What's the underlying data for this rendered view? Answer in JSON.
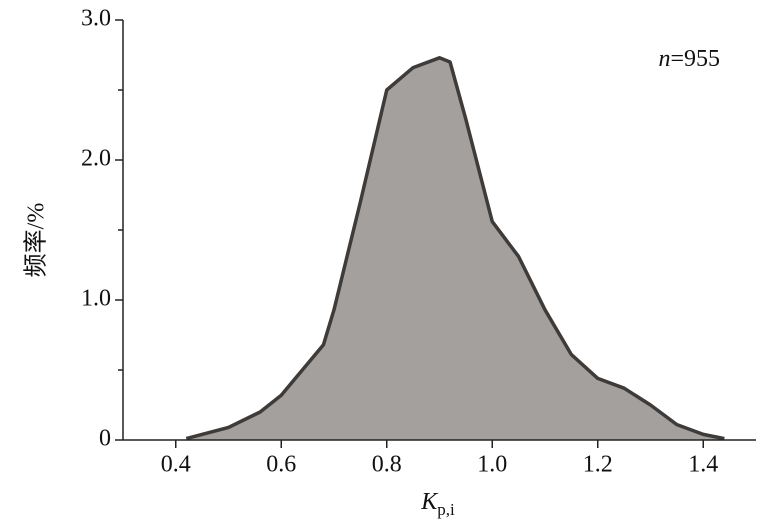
{
  "chart_data": {
    "type": "area",
    "annotation": {
      "variable": "n",
      "text": "=955"
    },
    "x_label": {
      "main": "K",
      "subscript": "p,i"
    },
    "y_label": "频率/%",
    "x": [
      0.42,
      0.5,
      0.56,
      0.6,
      0.64,
      0.68,
      0.7,
      0.75,
      0.8,
      0.85,
      0.9,
      0.92,
      0.95,
      1.0,
      1.05,
      1.1,
      1.15,
      1.2,
      1.25,
      1.3,
      1.35,
      1.4,
      1.44
    ],
    "values": [
      0.01,
      0.09,
      0.2,
      0.32,
      0.5,
      0.68,
      0.93,
      1.7,
      2.5,
      2.66,
      2.73,
      2.7,
      2.29,
      1.56,
      1.31,
      0.93,
      0.61,
      0.44,
      0.37,
      0.25,
      0.11,
      0.04,
      0.01
    ],
    "color": "#a4a09d",
    "line_color": "#3e3b39",
    "xlim": [
      0.3,
      1.5
    ],
    "xticks": [
      0.4,
      0.6,
      0.8,
      {
        "value": 1,
        "label": "1.0"
      },
      1.2,
      1.4
    ],
    "ylim": [
      0,
      3
    ],
    "yticks": [
      0,
      {
        "value": 1,
        "label": "1.0"
      },
      {
        "value": 2,
        "label": "2.0"
      },
      {
        "value": 3,
        "label": "3.0"
      }
    ],
    "yminor": [
      0.5,
      1.5,
      2.5
    ]
  }
}
